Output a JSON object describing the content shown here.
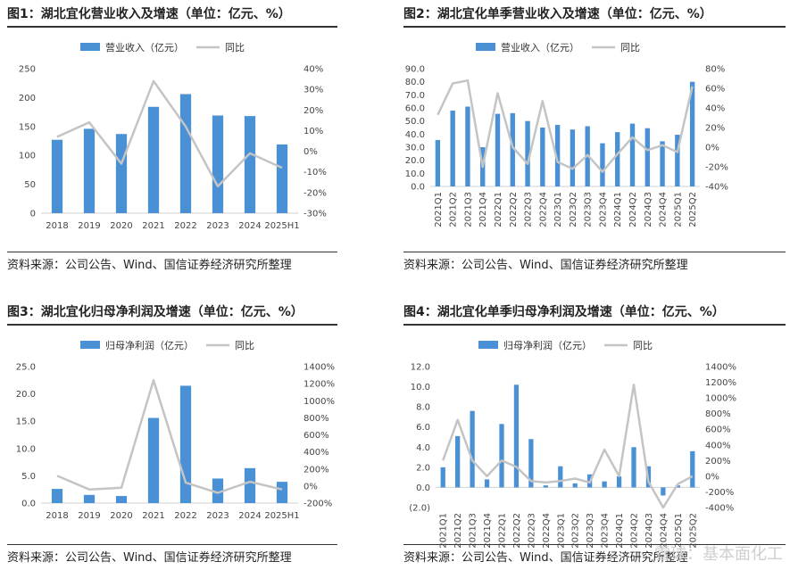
{
  "colors": {
    "bar": "#4a90d4",
    "line": "#c4c4c4",
    "negative": "#c0392b"
  },
  "legend": {
    "revenue": "营业收入（亿元）",
    "profit": "归母净利润（亿元）",
    "yoy": "同比"
  },
  "watermark": "雪球：基本面化工",
  "chart_data": [
    {
      "type": "bar",
      "title": "图1：湖北宜化营业收入及增速（单位：亿元、%）",
      "source": "资料来源：公司公告、Wind、国信证券经济研究所整理",
      "categories": [
        "2018",
        "2019",
        "2020",
        "2021",
        "2022",
        "2023",
        "2024",
        "2025H1"
      ],
      "series": [
        {
          "name": "营业收入（亿元）",
          "axis": "left",
          "values": [
            127,
            146,
            137,
            184,
            206,
            169,
            168,
            119
          ]
        },
        {
          "name": "同比",
          "axis": "right",
          "type": "line",
          "values": [
            7,
            14,
            -6,
            34,
            12,
            -17,
            -1,
            -8
          ]
        }
      ],
      "ylim": [
        0,
        250
      ],
      "yticks": [
        0,
        50,
        100,
        150,
        200,
        250
      ],
      "y2lim": [
        -30,
        40
      ],
      "y2ticks": [
        -30,
        -20,
        -10,
        0,
        10,
        20,
        30,
        40
      ],
      "y2suffix": "%",
      "rotate_x": false
    },
    {
      "type": "bar",
      "title": "图2：湖北宜化单季营业收入及增速（单位：亿元、%）",
      "source": "资料来源：公司公告、Wind、国信证券经济研究所整理",
      "categories": [
        "2021Q1",
        "2021Q2",
        "2021Q3",
        "2021Q4",
        "2022Q1",
        "2022Q2",
        "2022Q3",
        "2022Q4",
        "2023Q1",
        "2023Q2",
        "2023Q3",
        "2023Q4",
        "2024Q1",
        "2024Q2",
        "2024Q3",
        "2024Q4",
        "2025Q1",
        "2025Q2"
      ],
      "series": [
        {
          "name": "营业收入（亿元）",
          "axis": "left",
          "values": [
            35.5,
            58.0,
            61.0,
            30.0,
            55.5,
            56.0,
            50.0,
            45.0,
            47.0,
            43.5,
            46.0,
            33.0,
            41.5,
            48.0,
            44.5,
            34.5,
            39.5,
            80.0
          ]
        },
        {
          "name": "同比",
          "axis": "right",
          "type": "line",
          "values": [
            33,
            65,
            68,
            -20,
            55,
            0,
            -17,
            47,
            -15,
            -22,
            -8,
            -25,
            -7,
            10,
            -3,
            2,
            -5,
            62
          ]
        }
      ],
      "ylim": [
        0,
        90
      ],
      "yticks": [
        0,
        10,
        20,
        30,
        40,
        50,
        60,
        70,
        80,
        90
      ],
      "ydecimals": 1,
      "y2lim": [
        -40,
        80
      ],
      "y2ticks": [
        -40,
        -20,
        0,
        20,
        40,
        60,
        80
      ],
      "y2suffix": "%",
      "rotate_x": true
    },
    {
      "type": "bar",
      "title": "图3：湖北宜化归母净利润及增速（单位：亿元、%）",
      "source": "资料来源：公司公告、Wind、国信证券经济研究所整理",
      "categories": [
        "2018",
        "2019",
        "2020",
        "2021",
        "2022",
        "2023",
        "2024",
        "2025H1"
      ],
      "series": [
        {
          "name": "归母净利润（亿元）",
          "axis": "left",
          "values": [
            2.6,
            1.5,
            1.3,
            15.6,
            21.5,
            4.5,
            6.4,
            3.9
          ]
        },
        {
          "name": "同比",
          "axis": "right",
          "type": "line",
          "values": [
            120,
            -40,
            -20,
            1240,
            40,
            -80,
            50,
            -40
          ]
        }
      ],
      "ylim": [
        0,
        25
      ],
      "yticks": [
        0,
        5,
        10,
        15,
        20,
        25
      ],
      "ydecimals": 1,
      "y2lim": [
        -200,
        1400
      ],
      "y2ticks": [
        -200,
        0,
        200,
        400,
        600,
        800,
        1000,
        1200,
        1400
      ],
      "y2suffix": "%",
      "rotate_x": false
    },
    {
      "type": "bar",
      "title": "图4：湖北宜化单季归母净利润及增速（单位：亿元、%）",
      "source": "资料来源：公司公告、Wind、国信证券经济研究所整理",
      "categories": [
        "2021Q1",
        "2021Q2",
        "2021Q3",
        "2021Q4",
        "2022Q1",
        "2022Q2",
        "2022Q3",
        "2022Q4",
        "2023Q1",
        "2023Q2",
        "2023Q3",
        "2023Q4",
        "2024Q1",
        "2024Q2",
        "2024Q3",
        "2024Q4",
        "2025Q1",
        "2025Q2"
      ],
      "series": [
        {
          "name": "归母净利润（亿元）",
          "axis": "left",
          "values": [
            2.0,
            5.1,
            7.6,
            0.8,
            6.3,
            10.2,
            4.8,
            0.2,
            2.1,
            0.4,
            1.3,
            0.6,
            1.1,
            4.0,
            2.1,
            -0.8,
            0.2,
            3.6
          ]
        },
        {
          "name": "同比",
          "axis": "right",
          "type": "line",
          "values": [
            200,
            720,
            200,
            0,
            200,
            120,
            -60,
            -80,
            -60,
            -30,
            -80,
            340,
            0,
            1170,
            -70,
            -400,
            -100,
            0
          ]
        }
      ],
      "ylim": [
        -2,
        12
      ],
      "yticks": [
        -2,
        0,
        2,
        4,
        6,
        8,
        10,
        12
      ],
      "ydecimals": 1,
      "y2lim": [
        -400,
        1400
      ],
      "y2ticks": [
        -400,
        -200,
        0,
        200,
        400,
        600,
        800,
        1000,
        1200,
        1400
      ],
      "y2suffix": "%",
      "rotate_x": true
    }
  ]
}
